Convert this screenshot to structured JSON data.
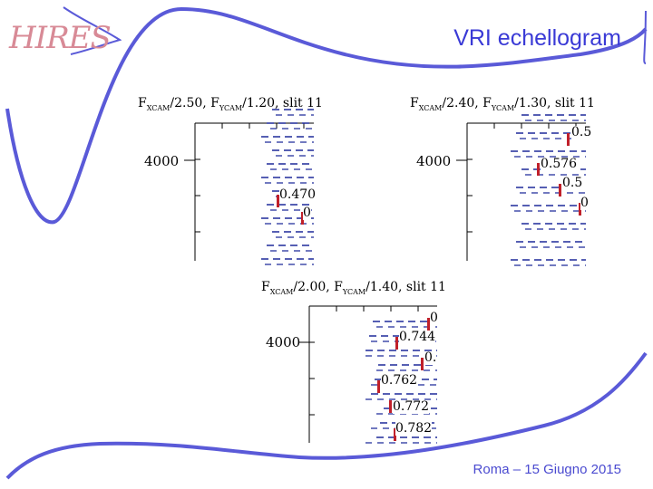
{
  "slide": {
    "title": "VRI echellogram",
    "footer": "Roma – 15 Giugno 2015",
    "logo": "HIRES"
  },
  "colors": {
    "title": "#3a3ad6",
    "decoration": "#5a5ad8",
    "dash": "#1f2a9a",
    "marker": "#c0202a",
    "logo": "#d88a96"
  },
  "panels": [
    {
      "f_xcam": "2.50",
      "f_ycam": "1.20",
      "slit": "11",
      "ytick": "4000",
      "order_labels": [
        "0.470",
        "0"
      ]
    },
    {
      "f_xcam": "2.40",
      "f_ycam": "1.30",
      "slit": "11",
      "ytick": "4000",
      "order_labels": [
        "0.5",
        "0.576",
        "0.5",
        "0"
      ]
    },
    {
      "f_xcam": "2.00",
      "f_ycam": "1.40",
      "slit": "11",
      "ytick": "4000",
      "order_labels": [
        "0",
        "0.744",
        "0.",
        "0.762",
        "0.772",
        "0.782"
      ]
    }
  ]
}
